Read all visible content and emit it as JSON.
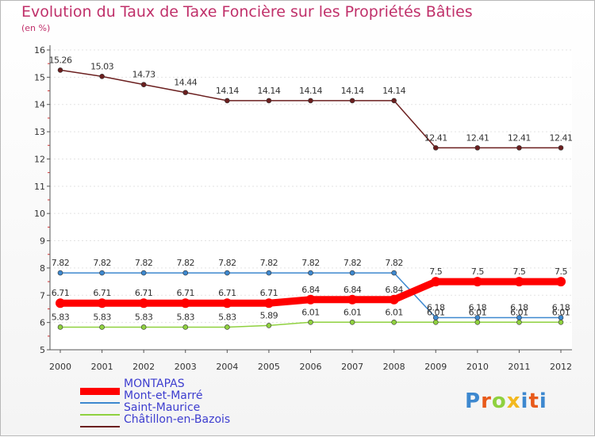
{
  "chart_data": {
    "type": "line",
    "title": "Evolution du Taux de Taxe Foncière sur les Propriétés Bâties",
    "ylabel": "(en %)",
    "xlabel": "",
    "ylim": [
      5,
      16
    ],
    "yticks": [
      "5",
      "6",
      "7",
      "8",
      "9",
      "10",
      "11",
      "12",
      "13",
      "14",
      "15",
      "16"
    ],
    "categories": [
      "2000",
      "2001",
      "2002",
      "2003",
      "2004",
      "2005",
      "2006",
      "2007",
      "2008",
      "2009",
      "2010",
      "2011",
      "2012"
    ],
    "series": [
      {
        "name": "Châtillon-en-Bazois",
        "color": "#6b1f1f",
        "values": [
          15.26,
          15.03,
          14.73,
          14.44,
          14.14,
          14.14,
          14.14,
          14.14,
          14.14,
          12.41,
          12.41,
          12.41,
          12.41
        ],
        "labels": [
          "15.26",
          "15.03",
          "14.73",
          "14.44",
          "14.14",
          "14.14",
          "14.14",
          "14.14",
          "14.14",
          "12.41",
          "12.41",
          "12.41",
          "12.41"
        ]
      },
      {
        "name": "Mont-et-Marré",
        "color": "#3d88cf",
        "values": [
          7.82,
          7.82,
          7.82,
          7.82,
          7.82,
          7.82,
          7.82,
          7.82,
          7.82,
          6.18,
          6.18,
          6.18,
          6.18
        ],
        "labels": [
          "7.82",
          "7.82",
          "7.82",
          "7.82",
          "7.82",
          "7.82",
          "7.82",
          "7.82",
          "7.82",
          "6.18",
          "6.18",
          "6.18",
          "6.18"
        ]
      },
      {
        "name": "Saint-Maurice",
        "color": "#8fd13f",
        "values": [
          5.83,
          5.83,
          5.83,
          5.83,
          5.83,
          5.89,
          6.01,
          6.01,
          6.01,
          6.01,
          6.01,
          6.01,
          6.01
        ],
        "labels": [
          "5.83",
          "5.83",
          "5.83",
          "5.83",
          "5.83",
          "5.89",
          "6.01",
          "6.01",
          "6.01",
          "6.01",
          "6.01",
          "6.01",
          "6.01"
        ]
      },
      {
        "name": "MONTAPAS",
        "color": "#ff0000",
        "values": [
          6.71,
          6.71,
          6.71,
          6.71,
          6.71,
          6.71,
          6.84,
          6.84,
          6.84,
          7.5,
          7.5,
          7.5,
          7.5
        ],
        "labels": [
          "6.71",
          "6.71",
          "6.71",
          "6.71",
          "6.71",
          "6.71",
          "6.84",
          "6.84",
          "6.84",
          "7.5",
          "7.5",
          "7.5",
          "7.5"
        ]
      }
    ],
    "legend": [
      {
        "name": "MONTAPAS",
        "color": "#ff0000",
        "text_color": "#3d3dcf"
      },
      {
        "name": "Mont-et-Marré",
        "color": "#3d88cf",
        "text_color": "#3d3dcf"
      },
      {
        "name": "Saint-Maurice",
        "color": "#8fd13f",
        "text_color": "#3d3dcf"
      },
      {
        "name": "Châtillon-en-Bazois",
        "color": "#6b1f1f",
        "text_color": "#3d3dcf"
      }
    ],
    "legend_position": "bottom-left"
  },
  "brand": {
    "logo_text": "Proxiti",
    "logo_colors": [
      "#3d88cf",
      "#e85a1a",
      "#8fd13f",
      "#f2b81e",
      "#3d88cf",
      "#e85a1a",
      "#3d88cf"
    ]
  }
}
